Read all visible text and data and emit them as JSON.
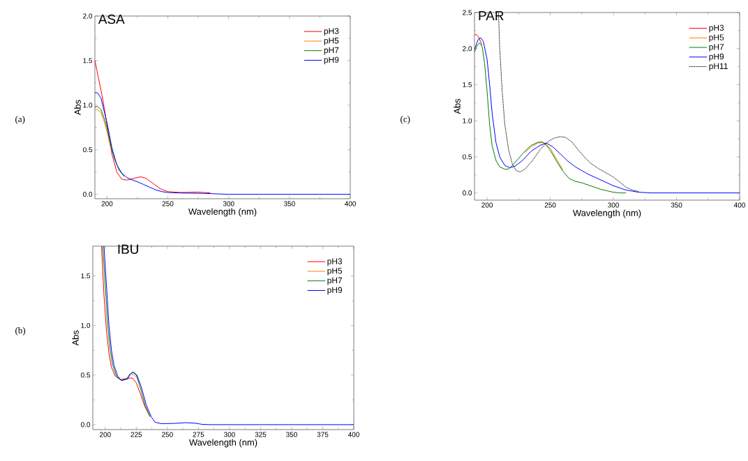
{
  "chart_data": [
    {
      "type": "line",
      "title": "ASA",
      "xlabel": "Wavelength (nm)",
      "ylabel": "Abs",
      "annotations": [
        "(a)"
      ],
      "legend": "top right",
      "line_style": "solid",
      "xlim": [
        190,
        400
      ],
      "ylim": [
        -0.05,
        2.0
      ],
      "xticks": [
        200,
        250,
        300,
        350,
        400
      ],
      "yticks": [
        {
          "value": 0,
          "label": "0.0"
        },
        0.5,
        {
          "value": 1,
          "label": "1.0"
        },
        1.5,
        {
          "value": 2,
          "label": "2.0"
        }
      ],
      "series": [
        {
          "name": "pH3",
          "color": "#ff0000",
          "x": [
            190,
            193,
            196,
            200,
            204,
            208,
            212,
            216,
            220,
            225,
            228,
            232,
            238,
            244,
            250,
            260,
            275,
            285
          ],
          "values": [
            1.5,
            1.3,
            1.1,
            0.78,
            0.45,
            0.25,
            0.17,
            0.16,
            0.17,
            0.19,
            0.195,
            0.18,
            0.12,
            0.06,
            0.03,
            0.02,
            0.025,
            0.015
          ]
        },
        {
          "name": "pH5",
          "color": "#ff8000",
          "x": [
            190,
            192,
            195,
            198,
            200,
            203
          ],
          "values": [
            0.95,
            0.95,
            0.92,
            0.8,
            0.7,
            0.52
          ]
        },
        {
          "name": "pH7",
          "color": "#008000",
          "x": [
            190,
            192,
            195,
            198,
            200,
            203,
            206,
            210,
            214
          ],
          "values": [
            0.98,
            0.985,
            0.95,
            0.84,
            0.74,
            0.55,
            0.4,
            0.27,
            0.2
          ]
        },
        {
          "name": "pH9",
          "color": "#0000ff",
          "x": [
            190,
            192,
            195,
            200,
            204,
            208,
            212,
            216,
            220,
            225,
            230,
            235,
            240,
            245,
            250,
            260,
            270,
            280,
            290,
            300,
            400
          ],
          "values": [
            1.14,
            1.14,
            1.08,
            0.8,
            0.52,
            0.33,
            0.24,
            0.19,
            0.165,
            0.14,
            0.11,
            0.08,
            0.05,
            0.03,
            0.02,
            0.015,
            0.012,
            0.01,
            0.005,
            0,
            0
          ]
        }
      ]
    },
    {
      "type": "line",
      "title": "IBU",
      "xlabel": "Wavelength (nm)",
      "ylabel": "Abs",
      "annotations": [
        "(b)"
      ],
      "legend": "top right",
      "line_style": "solid",
      "xlim": [
        190,
        400
      ],
      "ylim": [
        -0.05,
        1.8
      ],
      "xticks": [
        200,
        225,
        250,
        275,
        300,
        325,
        350,
        375,
        400
      ],
      "yticks": [
        {
          "value": 0,
          "label": "0.0"
        },
        0.5,
        {
          "value": 1,
          "label": "1.0"
        },
        1.5
      ],
      "series": [
        {
          "name": "pH3",
          "color": "#ff0000",
          "x": [
            197,
            199,
            201,
            203,
            205,
            208,
            212,
            216,
            220,
            222,
            225,
            228,
            232,
            236
          ],
          "values": [
            1.8,
            1.3,
            0.95,
            0.72,
            0.58,
            0.49,
            0.455,
            null,
            0.47,
            0.47,
            0.42,
            0.32,
            0.18,
            0.08
          ]
        },
        {
          "name": "pH5",
          "color": "#ff8000",
          "x": [
            220,
            222,
            225
          ],
          "values": [
            0.5,
            0.51,
            0.48
          ]
        },
        {
          "name": "pH7",
          "color": "#008000",
          "x": [
            198,
            200,
            202,
            204,
            206,
            209,
            213,
            217,
            220,
            222,
            225,
            228,
            232,
            236
          ],
          "values": [
            1.8,
            1.4,
            1.0,
            0.75,
            0.6,
            0.49,
            0.445,
            0.46,
            0.51,
            0.53,
            0.5,
            0.38,
            0.2,
            0.08
          ]
        },
        {
          "name": "pH9",
          "color": "#0000ff",
          "x": [
            199,
            201,
            203,
            205,
            207,
            210,
            213,
            218,
            220,
            222.5,
            225.5,
            229,
            233,
            237,
            240,
            245,
            255,
            265,
            272,
            278,
            285,
            400
          ],
          "values": [
            1.8,
            1.4,
            1.0,
            0.75,
            0.6,
            0.49,
            0.445,
            0.46,
            0.51,
            0.53,
            0.5,
            0.38,
            0.2,
            0.08,
            0.025,
            0.01,
            0.012,
            0.02,
            0.015,
            0.003,
            0,
            0
          ]
        }
      ]
    },
    {
      "type": "line",
      "title": "PAR",
      "xlabel": "Wavelength (nm)",
      "ylabel": "Abs",
      "annotations": [
        "(c)"
      ],
      "legend": "top right",
      "xlim": [
        190,
        400
      ],
      "ylim": [
        -0.1,
        2.5
      ],
      "xticks": [
        200,
        250,
        300,
        350,
        400
      ],
      "yticks": [
        {
          "value": 0,
          "label": "0.0"
        },
        0.5,
        {
          "value": 1,
          "label": "1.0"
        },
        1.5,
        {
          "value": 2,
          "label": "2.0"
        },
        2.5
      ],
      "series": [
        {
          "name": "pH3",
          "color": "#ff0000",
          "x": [
            190,
            191,
            193,
            196
          ],
          "values": [
            2.18,
            2.2,
            2.17,
            2.05
          ]
        },
        {
          "name": "pH5",
          "color": "#ff8000",
          "x": [
            230,
            235,
            240,
            245,
            250,
            255,
            260
          ],
          "values": [
            0.56,
            0.64,
            0.69,
            0.7,
            0.62,
            0.47,
            0.32
          ]
        },
        {
          "name": "pH7",
          "color": "#008000",
          "x": [
            190,
            192,
            194,
            196,
            198,
            200,
            202,
            204,
            207,
            210,
            214,
            217,
            220,
            225,
            230,
            235,
            240,
            243,
            246,
            250,
            255,
            260,
            265,
            270,
            275,
            280,
            285,
            290,
            295,
            300,
            305,
            310
          ],
          "values": [
            1.95,
            2.04,
            2.08,
            2.03,
            1.8,
            1.4,
            0.95,
            0.65,
            0.45,
            0.36,
            0.33,
            0.33,
            0.38,
            0.48,
            0.58,
            0.66,
            0.7,
            0.71,
            0.68,
            0.59,
            0.44,
            0.3,
            0.2,
            0.16,
            0.14,
            0.11,
            0.08,
            0.05,
            0.03,
            0.01,
            0,
            0
          ]
        },
        {
          "name": "pH9",
          "color": "#0000ff",
          "x": [
            190,
            193,
            195,
            197,
            200,
            202,
            204,
            207,
            210,
            214,
            218,
            222,
            228,
            235,
            242,
            247,
            252,
            258,
            264,
            270,
            275,
            280,
            290,
            300,
            310,
            320,
            330,
            400
          ],
          "values": [
            1.99,
            2.13,
            2.15,
            2.1,
            1.85,
            1.5,
            1.1,
            0.7,
            0.5,
            0.38,
            0.35,
            0.37,
            0.45,
            0.58,
            0.66,
            0.69,
            0.64,
            0.54,
            0.44,
            0.36,
            0.31,
            0.26,
            0.18,
            0.1,
            0.04,
            0.01,
            0,
            0
          ]
        },
        {
          "name": "pH11",
          "color": "#000000",
          "line_style": "dotted",
          "x": [
            209,
            210,
            212,
            214,
            217,
            220,
            223,
            226,
            230,
            236,
            242,
            248,
            253,
            258,
            262,
            267,
            272,
            277,
            282,
            288,
            295,
            300,
            305,
            310,
            315,
            320
          ],
          "values": [
            2.5,
            2.0,
            1.4,
            0.95,
            0.6,
            0.4,
            0.31,
            0.29,
            0.33,
            0.45,
            0.6,
            0.71,
            0.76,
            0.78,
            0.77,
            0.71,
            0.6,
            0.5,
            0.41,
            0.34,
            0.27,
            0.22,
            0.15,
            0.08,
            0.04,
            0.02
          ]
        }
      ]
    }
  ]
}
